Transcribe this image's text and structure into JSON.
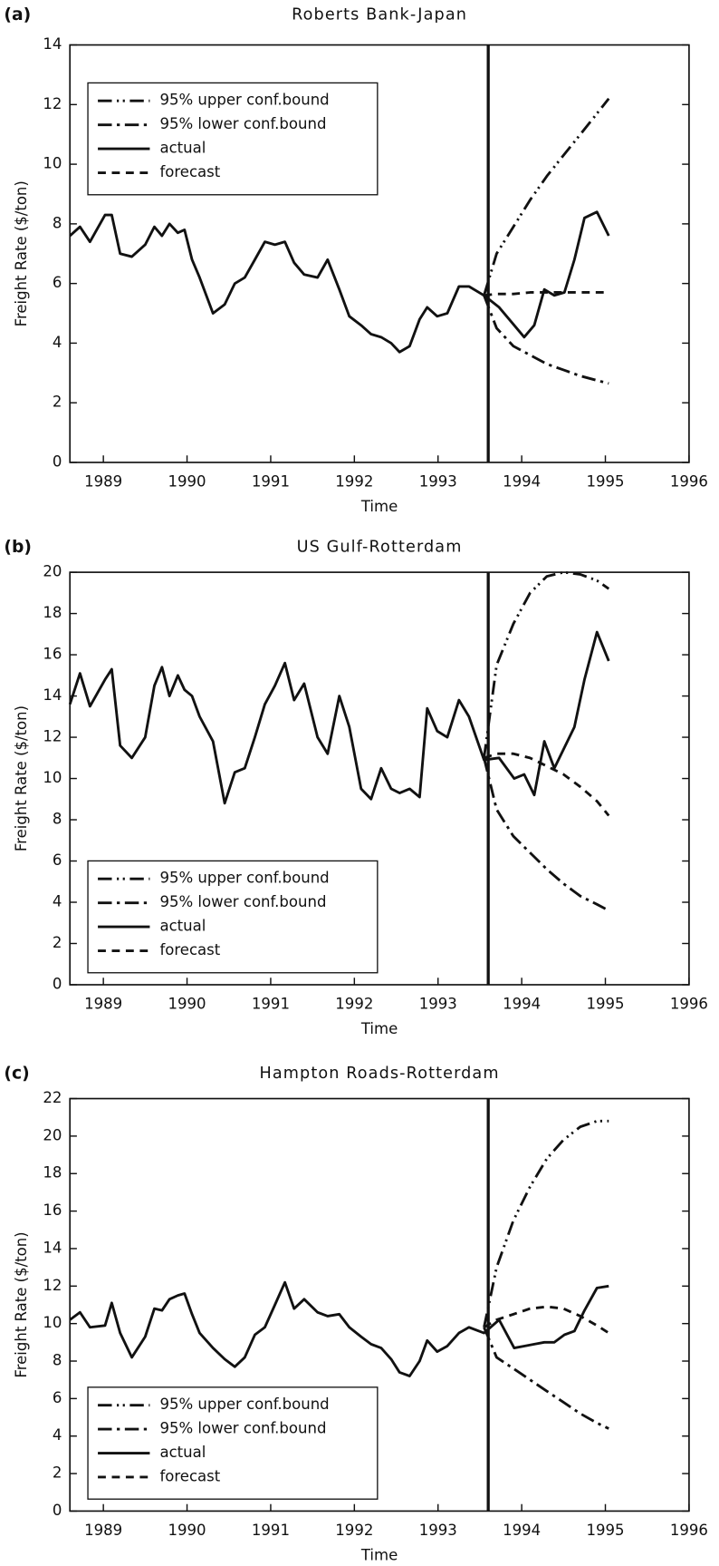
{
  "chart_data": [
    {
      "type": "line",
      "panel": "(a)",
      "title": "Roberts Bank-Japan",
      "xlabel": "Time",
      "ylabel": "Freight Rate ($/ton)",
      "xlim": [
        1988.6,
        1996
      ],
      "xticks": [
        1989,
        1990,
        1991,
        1992,
        1993,
        1994,
        1995,
        1996
      ],
      "ylim": [
        0,
        14
      ],
      "yticks": [
        0,
        2,
        4,
        6,
        8,
        10,
        12,
        14
      ],
      "legend": "upper left",
      "vline_x": 1993.6,
      "series": [
        {
          "name": "95% upper conf.bound",
          "color": "#111111",
          "dash": "14 5 2 4 2 5",
          "x": [
            1993.55,
            1993.7,
            1993.9,
            1994.1,
            1994.3,
            1994.5,
            1994.7,
            1994.9,
            1995.04
          ],
          "values": [
            5.6,
            7.0,
            7.9,
            8.8,
            9.6,
            10.3,
            11.0,
            11.7,
            12.2
          ]
        },
        {
          "name": "95% lower conf.bound",
          "color": "#111111",
          "dash": "14 5 3 5",
          "x": [
            1993.55,
            1993.7,
            1993.9,
            1994.1,
            1994.3,
            1994.5,
            1994.7,
            1994.9,
            1995.04
          ],
          "values": [
            5.6,
            4.5,
            3.9,
            3.6,
            3.3,
            3.1,
            2.9,
            2.75,
            2.65
          ]
        },
        {
          "name": "actual",
          "color": "#111111",
          "dash": "none",
          "x": [
            1988.6,
            1988.72,
            1988.84,
            1989.02,
            1989.1,
            1989.2,
            1989.34,
            1989.5,
            1989.61,
            1989.7,
            1989.79,
            1989.89,
            1989.97,
            1990.06,
            1990.15,
            1990.31,
            1990.45,
            1990.57,
            1990.69,
            1990.81,
            1990.93,
            1991.05,
            1991.17,
            1991.28,
            1991.4,
            1991.56,
            1991.68,
            1991.82,
            1991.94,
            1992.08,
            1992.2,
            1992.32,
            1992.44,
            1992.54,
            1992.66,
            1992.78,
            1992.87,
            1992.99,
            1993.11,
            1993.25,
            1993.37,
            1993.55,
            1993.73,
            1993.91,
            1994.03,
            1994.15,
            1994.27,
            1994.39,
            1994.51,
            1994.63,
            1994.75,
            1994.9,
            1995.04
          ],
          "values": [
            7.6,
            7.9,
            7.4,
            8.3,
            8.3,
            7.0,
            6.9,
            7.3,
            7.9,
            7.6,
            8.0,
            7.7,
            7.8,
            6.8,
            6.2,
            5.0,
            5.3,
            6.0,
            6.2,
            6.8,
            7.4,
            7.3,
            7.4,
            6.7,
            6.3,
            6.2,
            6.8,
            5.8,
            4.9,
            4.6,
            4.3,
            4.2,
            4.0,
            3.7,
            3.9,
            4.8,
            5.2,
            4.9,
            5.0,
            5.9,
            5.9,
            5.6,
            5.2,
            4.6,
            4.2,
            4.6,
            5.8,
            5.6,
            5.7,
            6.8,
            8.2,
            8.4,
            7.6
          ]
        },
        {
          "name": "forecast",
          "color": "#111111",
          "dash": "8 6",
          "x": [
            1993.55,
            1993.7,
            1993.9,
            1994.1,
            1994.3,
            1994.5,
            1994.7,
            1994.9,
            1995.04
          ],
          "values": [
            5.6,
            5.65,
            5.65,
            5.7,
            5.7,
            5.7,
            5.7,
            5.7,
            5.7
          ]
        }
      ]
    },
    {
      "type": "line",
      "panel": "(b)",
      "title": "US Gulf-Rotterdam",
      "xlabel": "Time",
      "ylabel": "Freight Rate ($/ton)",
      "xlim": [
        1988.6,
        1996
      ],
      "xticks": [
        1989,
        1990,
        1991,
        1992,
        1993,
        1994,
        1995,
        1996
      ],
      "ylim": [
        0,
        20
      ],
      "yticks": [
        0,
        2,
        4,
        6,
        8,
        10,
        12,
        14,
        16,
        18,
        20
      ],
      "legend": "lower left",
      "vline_x": 1993.6,
      "series": [
        {
          "name": "95% upper conf.bound",
          "color": "#111111",
          "dash": "14 5 2 4 2 5",
          "x": [
            1993.55,
            1993.7,
            1993.9,
            1994.1,
            1994.3,
            1994.5,
            1994.7,
            1994.9,
            1995.04
          ],
          "values": [
            11.0,
            15.5,
            17.5,
            19.0,
            19.8,
            20.0,
            19.9,
            19.6,
            19.2
          ]
        },
        {
          "name": "95% lower conf.bound",
          "color": "#111111",
          "dash": "14 5 3 5",
          "x": [
            1993.55,
            1993.7,
            1993.9,
            1994.1,
            1994.3,
            1994.5,
            1994.7,
            1994.9,
            1995.04
          ],
          "values": [
            11.0,
            8.5,
            7.2,
            6.4,
            5.6,
            4.9,
            4.3,
            3.9,
            3.6
          ]
        },
        {
          "name": "actual",
          "color": "#111111",
          "dash": "none",
          "x": [
            1988.6,
            1988.72,
            1988.84,
            1989.02,
            1989.1,
            1989.2,
            1989.34,
            1989.5,
            1989.61,
            1989.7,
            1989.79,
            1989.89,
            1989.97,
            1990.06,
            1990.15,
            1990.31,
            1990.45,
            1990.57,
            1990.69,
            1990.81,
            1990.93,
            1991.05,
            1991.17,
            1991.28,
            1991.4,
            1991.56,
            1991.68,
            1991.82,
            1991.94,
            1992.08,
            1992.2,
            1992.32,
            1992.44,
            1992.54,
            1992.66,
            1992.78,
            1992.87,
            1992.99,
            1993.11,
            1993.25,
            1993.37,
            1993.55,
            1993.73,
            1993.91,
            1994.03,
            1994.15,
            1994.27,
            1994.39,
            1994.51,
            1994.63,
            1994.75,
            1994.9,
            1995.04
          ],
          "values": [
            13.6,
            15.1,
            13.5,
            14.8,
            15.3,
            11.6,
            11.0,
            12.0,
            14.5,
            15.4,
            14.0,
            15.0,
            14.3,
            14.0,
            13.0,
            11.8,
            8.8,
            10.3,
            10.5,
            12.0,
            13.6,
            14.5,
            15.6,
            13.8,
            14.6,
            12.0,
            11.2,
            14.0,
            12.5,
            9.5,
            9.0,
            10.5,
            9.5,
            9.3,
            9.5,
            9.1,
            13.4,
            12.3,
            12.0,
            13.8,
            13.0,
            10.9,
            11.0,
            10.0,
            10.2,
            9.2,
            11.8,
            10.5,
            11.5,
            12.5,
            14.8,
            17.1,
            15.7
          ]
        },
        {
          "name": "forecast",
          "color": "#111111",
          "dash": "8 6",
          "x": [
            1993.55,
            1993.7,
            1993.9,
            1994.1,
            1994.3,
            1994.5,
            1994.7,
            1994.9,
            1995.04
          ],
          "values": [
            11.0,
            11.2,
            11.2,
            11.0,
            10.6,
            10.2,
            9.6,
            8.9,
            8.2
          ]
        }
      ]
    },
    {
      "type": "line",
      "panel": "(c)",
      "title": "Hampton Roads-Rotterdam",
      "xlabel": "Time",
      "ylabel": "Freight Rate ($/ton)",
      "xlim": [
        1988.6,
        1996
      ],
      "xticks": [
        1989,
        1990,
        1991,
        1992,
        1993,
        1994,
        1995,
        1996
      ],
      "ylim": [
        0,
        22
      ],
      "yticks": [
        0,
        2,
        4,
        6,
        8,
        10,
        12,
        14,
        16,
        18,
        20,
        22
      ],
      "legend": "lower left",
      "vline_x": 1993.6,
      "series": [
        {
          "name": "95% upper conf.bound",
          "color": "#111111",
          "dash": "14 5 2 4 2 5",
          "x": [
            1993.55,
            1993.7,
            1993.9,
            1994.1,
            1994.3,
            1994.5,
            1994.7,
            1994.9,
            1995.04
          ],
          "values": [
            9.8,
            13.0,
            15.5,
            17.3,
            18.8,
            19.8,
            20.5,
            20.8,
            20.8
          ]
        },
        {
          "name": "95% lower conf.bound",
          "color": "#111111",
          "dash": "14 5 3 5",
          "x": [
            1993.55,
            1993.7,
            1993.9,
            1994.1,
            1994.3,
            1994.5,
            1994.7,
            1994.9,
            1995.04
          ],
          "values": [
            9.8,
            8.2,
            7.6,
            7.0,
            6.4,
            5.8,
            5.2,
            4.7,
            4.4
          ]
        },
        {
          "name": "actual",
          "color": "#111111",
          "dash": "none",
          "x": [
            1988.6,
            1988.72,
            1988.84,
            1989.02,
            1989.1,
            1989.2,
            1989.34,
            1989.5,
            1989.61,
            1989.7,
            1989.79,
            1989.89,
            1989.97,
            1990.06,
            1990.15,
            1990.31,
            1990.45,
            1990.57,
            1990.69,
            1990.81,
            1990.93,
            1991.05,
            1991.17,
            1991.28,
            1991.4,
            1991.56,
            1991.68,
            1991.82,
            1991.94,
            1992.08,
            1992.2,
            1992.32,
            1992.44,
            1992.54,
            1992.66,
            1992.78,
            1992.87,
            1992.99,
            1993.11,
            1993.25,
            1993.37,
            1993.55,
            1993.73,
            1993.91,
            1994.03,
            1994.15,
            1994.27,
            1994.39,
            1994.51,
            1994.63,
            1994.75,
            1994.9,
            1995.04
          ],
          "values": [
            10.2,
            10.6,
            9.8,
            9.9,
            11.1,
            9.5,
            8.2,
            9.3,
            10.8,
            10.7,
            11.3,
            11.5,
            11.6,
            10.5,
            9.5,
            8.7,
            8.1,
            7.7,
            8.2,
            9.4,
            9.8,
            11.0,
            12.2,
            10.8,
            11.3,
            10.6,
            10.4,
            10.5,
            9.8,
            9.3,
            8.9,
            8.7,
            8.1,
            7.4,
            7.2,
            8.0,
            9.1,
            8.5,
            8.8,
            9.5,
            9.8,
            9.5,
            10.2,
            8.7,
            8.8,
            8.9,
            9.0,
            9.0,
            9.4,
            9.6,
            10.7,
            11.9,
            12.0
          ]
        },
        {
          "name": "forecast",
          "color": "#111111",
          "dash": "8 6",
          "x": [
            1993.55,
            1993.7,
            1993.9,
            1994.1,
            1994.3,
            1994.5,
            1994.7,
            1994.9,
            1995.04
          ],
          "values": [
            9.8,
            10.2,
            10.5,
            10.8,
            10.9,
            10.8,
            10.4,
            9.9,
            9.5
          ]
        }
      ]
    }
  ]
}
